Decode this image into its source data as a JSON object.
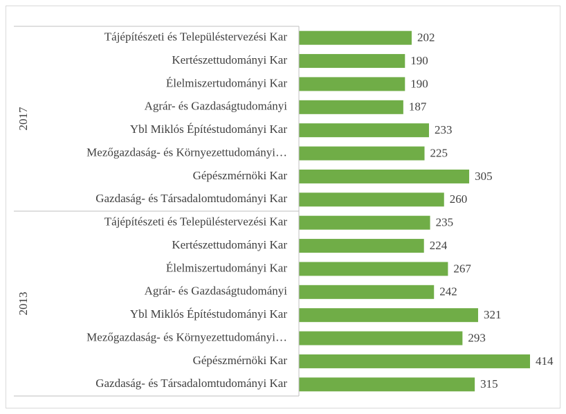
{
  "chart_data": {
    "type": "bar",
    "orientation": "horizontal",
    "color": "#70ad47",
    "groups": [
      {
        "name": "2017",
        "categories": [
          "Tájépítészeti és Településtervezési Kar",
          "Kertészettudományi Kar",
          "Élelmiszertudományi Kar",
          "Agrár- és Gazdaságtudományi",
          "Ybl Miklós Építéstudományi Kar",
          "Mezőgazdaság- és Környezettudományi…",
          "Gépészmérnöki Kar",
          "Gazdaság- és Társadalomtudományi Kar"
        ],
        "values": [
          202,
          190,
          190,
          187,
          233,
          225,
          305,
          260
        ]
      },
      {
        "name": "2013",
        "categories": [
          "Tájépítészeti és Településtervezési Kar",
          "Kertészettudományi Kar",
          "Élelmiszertudományi Kar",
          "Agrár- és Gazdaságtudományi",
          "Ybl Miklós Építéstudományi Kar",
          "Mezőgazdaság- és Környezettudományi…",
          "Gépészmérnöki Kar",
          "Gazdaság- és Társadalomtudományi Kar"
        ],
        "values": [
          235,
          224,
          267,
          242,
          321,
          293,
          414,
          315
        ]
      }
    ]
  }
}
